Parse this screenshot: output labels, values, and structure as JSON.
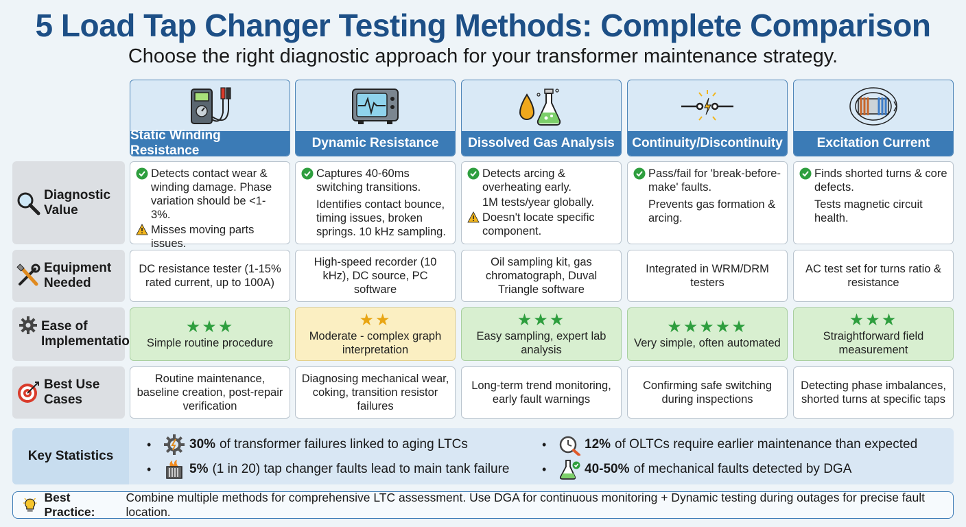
{
  "title": "5 Load Tap Changer Testing Methods: Complete Comparison",
  "subtitle": "Choose the right diagnostic approach for your transformer maintenance strategy.",
  "columns": [
    {
      "title": "Static Winding Resistance",
      "icon": "multimeter-icon"
    },
    {
      "title": "Dynamic Resistance",
      "icon": "oscilloscope-icon"
    },
    {
      "title": "Dissolved Gas Analysis",
      "icon": "oil-flask-icon"
    },
    {
      "title": "Continuity/Discontinuity",
      "icon": "circuit-spark-icon"
    },
    {
      "title": "Excitation Current",
      "icon": "coil-core-icon"
    }
  ],
  "rows": {
    "diagnostic": {
      "label": "Diagnostic Value",
      "icon": "magnifier-icon",
      "cells": [
        {
          "check": "Detects contact wear & winding damage. Phase variation should be <1-3%.",
          "warn": "Misses moving parts issues."
        },
        {
          "check": "Captures 40-60ms switching transitions.",
          "extra": "Identifies contact bounce, timing issues, broken springs. 10 kHz sampling."
        },
        {
          "check": "Detects arcing & overheating early.",
          "extra": "1M tests/year globally.",
          "warn": "Doesn't locate specific component."
        },
        {
          "check": "Pass/fail for 'break-before-make' faults.",
          "extra": "Prevents gas formation & arcing."
        },
        {
          "check": "Finds shorted turns & core defects.",
          "extra": "Tests magnetic circuit health."
        }
      ]
    },
    "equipment": {
      "label": "Equipment Needed",
      "icon": "tools-icon",
      "cells": [
        "DC resistance tester (1-15% rated current, up to 100A)",
        "High-speed recorder (10 kHz), DC source, PC software",
        "Oil sampling kit, gas chromatograph, Duval Triangle software",
        "Integrated in WRM/DRM testers",
        "AC test set for turns ratio & resistance"
      ]
    },
    "ease": {
      "label": "Ease of Implementation",
      "icon": "gear-icon",
      "cells": [
        {
          "stars": 3,
          "text": "Simple routine procedure",
          "level": "green"
        },
        {
          "stars": 2,
          "text": "Moderate - complex graph interpretation",
          "level": "yellow"
        },
        {
          "stars": 3,
          "text": "Easy sampling, expert lab analysis",
          "level": "green"
        },
        {
          "stars": 5,
          "text": "Very simple, often automated",
          "level": "green"
        },
        {
          "stars": 3,
          "text": "Straightforward field measurement",
          "level": "green"
        }
      ]
    },
    "usecases": {
      "label": "Best Use Cases",
      "icon": "target-icon",
      "cells": [
        "Routine maintenance, baseline creation, post-repair verification",
        "Diagnosing mechanical wear, coking, transition resistor failures",
        "Long-term trend monitoring, early fault warnings",
        "Confirming safe switching during inspections",
        "Detecting phase imbalances, shorted turns at specific taps"
      ]
    }
  },
  "stats": {
    "label": "Key Statistics",
    "items": [
      {
        "value": "30%",
        "text": "of transformer failures linked to aging LTCs",
        "icon": "gear-warning-icon"
      },
      {
        "value": "12%",
        "text": "of OLTCs require earlier maintenance than expected",
        "icon": "clock-wrench-icon"
      },
      {
        "value": "5%",
        "text": "(1 in 20) tap changer faults lead to main tank failure",
        "icon": "tank-fire-icon"
      },
      {
        "value": "40-50%",
        "text": "of mechanical faults detected by DGA",
        "icon": "flask-check-icon"
      }
    ]
  },
  "best_practice": {
    "label": "Best Practice:",
    "text": "Combine multiple methods for comprehensive LTC assessment. Use DGA for continuous monitoring + Dynamic testing during outages for precise fault location.",
    "icon": "lightbulb-icon"
  },
  "colors": {
    "brand": "#1d4f86",
    "header": "#3b7bb6",
    "green": "#d8efd0",
    "yellow": "#fbefc2"
  }
}
